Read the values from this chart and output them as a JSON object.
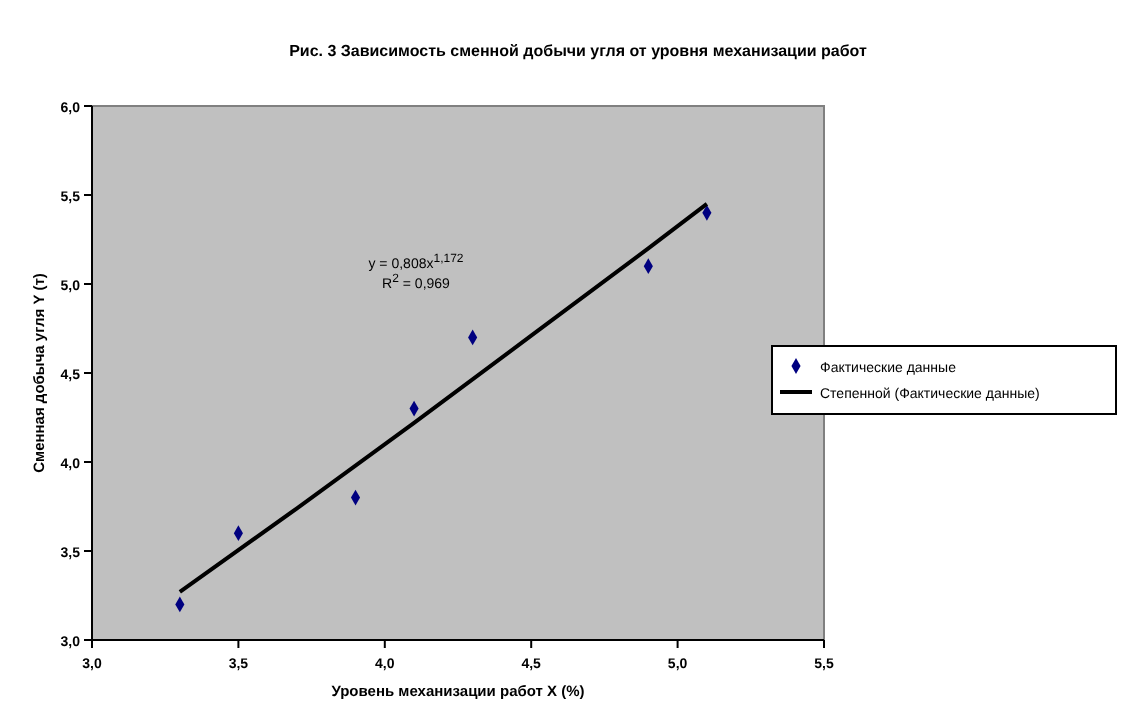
{
  "chart_data": {
    "type": "scatter",
    "title": "Рис. 3 Зависимость сменной добычи угля от уровня механизации работ",
    "xlabel": "Уровень механизации работ X (%)",
    "ylabel": "Сменная добыча угля Y (т)",
    "xlim": [
      3,
      5.5
    ],
    "xticks": [
      {
        "value": 3,
        "label": "3,0"
      },
      {
        "value": 3.5,
        "label": "3,5"
      },
      {
        "value": 4,
        "label": "4,0"
      },
      {
        "value": 4.5,
        "label": "4,5"
      },
      {
        "value": 5,
        "label": "5,0"
      },
      {
        "value": 5.5,
        "label": "5,5"
      }
    ],
    "ylim": [
      3,
      6
    ],
    "yticks": [
      {
        "value": 3,
        "label": "3,0"
      },
      {
        "value": 3.5,
        "label": "3,5"
      },
      {
        "value": 4,
        "label": "4,0"
      },
      {
        "value": 4.5,
        "label": "4,5"
      },
      {
        "value": 5,
        "label": "5,0"
      },
      {
        "value": 5.5,
        "label": "5,5"
      },
      {
        "value": 6,
        "label": "6,0"
      }
    ],
    "grid": false,
    "legend": "right",
    "annotations": [
      "y = 0,808x$^{1,172}$",
      "R$^{2}$ = 0,969"
    ],
    "series": [
      {
        "name": "Фактические данные",
        "marker": "diamond",
        "color": "#000080",
        "x": [
          3.3,
          3.5,
          3.9,
          4.1,
          4.3,
          4.9,
          5.1
        ],
        "values": [
          3.2,
          3.6,
          3.8,
          4.3,
          4.7,
          5.1,
          5.4
        ]
      },
      {
        "name": "Степенной (Фактические данные)",
        "type": "line",
        "marker": "none",
        "color": "#000000",
        "line_style": "solid",
        "x": [
          3.3,
          3.7,
          4.1,
          4.5,
          4.9,
          5.1
        ],
        "values": [
          3.27,
          3.74,
          4.22,
          4.71,
          5.2,
          5.45
        ]
      }
    ]
  }
}
